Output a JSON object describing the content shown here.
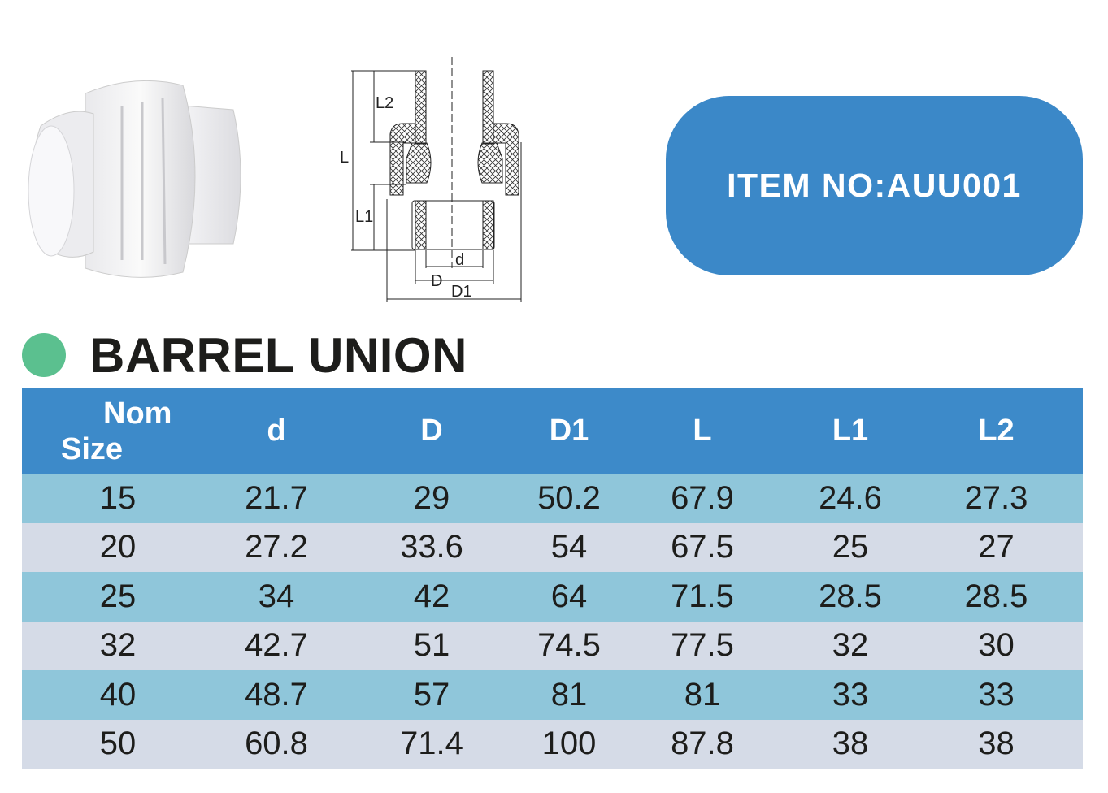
{
  "item_box": {
    "label": "ITEM NO:AUU001",
    "color": "#3b88c8"
  },
  "title": "BARREL UNION",
  "accent_dot_color": "#5bc08f",
  "drawing": {
    "labels": {
      "L": "L",
      "L1": "L1",
      "L2": "L2",
      "d": "d",
      "D": "D",
      "D1": "D1"
    }
  },
  "table": {
    "header_color": "#3d8ac9",
    "headers": {
      "nom_line1": "Nom",
      "nom_line2": "Size",
      "cols": [
        "d",
        "D",
        "D1",
        "L",
        "L1",
        "L2"
      ]
    },
    "rows": [
      [
        "15",
        "21.7",
        "29",
        "50.2",
        "67.9",
        "24.6",
        "27.3"
      ],
      [
        "20",
        "27.2",
        "33.6",
        "54",
        "67.5",
        "25",
        "27"
      ],
      [
        "25",
        "34",
        "42",
        "64",
        "71.5",
        "28.5",
        "28.5"
      ],
      [
        "32",
        "42.7",
        "51",
        "74.5",
        "77.5",
        "32",
        "30"
      ],
      [
        "40",
        "48.7",
        "57",
        "81",
        "81",
        "33",
        "33"
      ],
      [
        "50",
        "60.8",
        "71.4",
        "100",
        "87.8",
        "38",
        "38"
      ]
    ]
  }
}
